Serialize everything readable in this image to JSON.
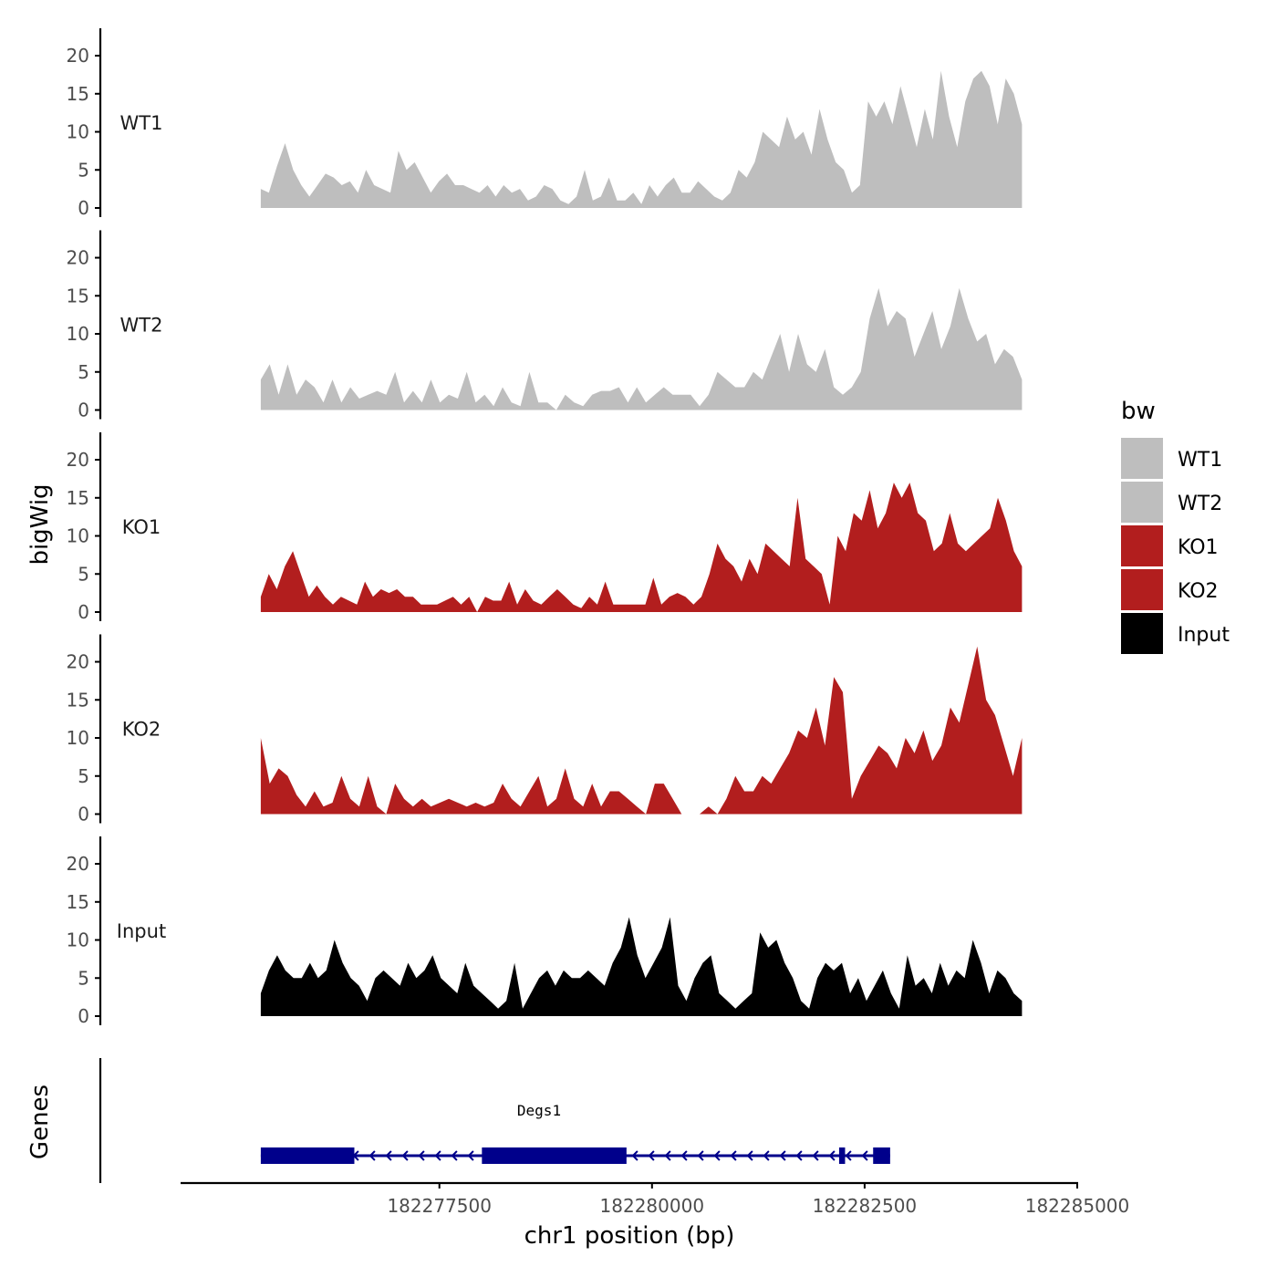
{
  "colors": {
    "wt": "#bebebe",
    "ko": "#b21e1e",
    "input": "#000000",
    "gene": "#00008b",
    "axis": "#000000",
    "tick_text": "#4d4d4d"
  },
  "chart_data": {
    "type": "area",
    "ylabel": "bigWig",
    "xlabel": "chr1 position (bp)",
    "genes_label": "Genes",
    "y_ticks": [
      "0",
      "5",
      "10",
      "15",
      "20"
    ],
    "ylim": [
      0,
      23
    ],
    "xlim": [
      182274500,
      182285000
    ],
    "x_ticks": [
      {
        "value": 182277500,
        "label": "182277500"
      },
      {
        "value": 182280000,
        "label": "182280000"
      },
      {
        "value": 182282500,
        "label": "182282500"
      },
      {
        "value": 182285000,
        "label": "182285000"
      }
    ],
    "x_range_signal": [
      182275400,
      182284350
    ],
    "legend": {
      "title": "bw",
      "entries": [
        {
          "label": "WT1",
          "color": "#bebebe"
        },
        {
          "label": "WT2",
          "color": "#bebebe"
        },
        {
          "label": "KO1",
          "color": "#b21e1e"
        },
        {
          "label": "KO2",
          "color": "#b21e1e"
        },
        {
          "label": "Input",
          "color": "#000000"
        }
      ]
    },
    "tracks": [
      {
        "name": "WT1",
        "color": "#bebebe",
        "values": [
          2.5,
          2,
          5.5,
          8.5,
          5,
          3,
          1.5,
          3,
          4.5,
          4,
          3,
          3.5,
          2,
          5,
          3,
          2.5,
          2,
          7.5,
          5,
          6,
          4,
          2,
          3.5,
          4.5,
          3,
          3,
          2.5,
          2,
          3,
          1.5,
          3,
          2,
          2.5,
          1,
          1.5,
          3,
          2.5,
          1,
          0.5,
          1.5,
          5,
          1,
          1.5,
          4,
          1,
          1,
          2,
          0.5,
          3,
          1.5,
          3,
          4,
          2,
          2,
          3.5,
          2.5,
          1.5,
          1,
          2,
          5,
          4,
          6,
          10,
          9,
          8,
          12,
          9,
          10,
          7,
          13,
          9,
          6,
          5,
          2,
          3,
          14,
          12,
          14,
          11,
          16,
          12,
          8,
          13,
          9,
          18,
          12,
          8,
          14,
          17,
          18,
          16,
          11,
          17,
          15,
          11
        ]
      },
      {
        "name": "WT2",
        "color": "#bebebe",
        "values": [
          4,
          6,
          2,
          6,
          2,
          4,
          3,
          1,
          4,
          1,
          3,
          1.5,
          2,
          2.5,
          2,
          5,
          1,
          2.5,
          1,
          4,
          1,
          2,
          1.5,
          5,
          1,
          2,
          0.5,
          3,
          1,
          0.5,
          5,
          1,
          1,
          0,
          2,
          1,
          0.5,
          2,
          2.5,
          2.5,
          3,
          1,
          3,
          1,
          2,
          3,
          2,
          2,
          2,
          0.5,
          2,
          5,
          4,
          3,
          3,
          5,
          4,
          7,
          10,
          5,
          10,
          6,
          5,
          8,
          3,
          2,
          3,
          5,
          12,
          16,
          11,
          13,
          12,
          7,
          10,
          13,
          8,
          11,
          16,
          12,
          9,
          10,
          6,
          8,
          7,
          4
        ]
      },
      {
        "name": "KO1",
        "color": "#b21e1e",
        "values": [
          2,
          5,
          3,
          6,
          8,
          5,
          2,
          3.5,
          2,
          1,
          2,
          1.5,
          1,
          4,
          2,
          3,
          2.5,
          3,
          2,
          2,
          1,
          1,
          1,
          1.5,
          2,
          1,
          2,
          0,
          2,
          1.5,
          1.5,
          4,
          1,
          3,
          1.5,
          1,
          2,
          3,
          2,
          1,
          0.5,
          2,
          1,
          4,
          1,
          1,
          1,
          1,
          1,
          4.5,
          1,
          2,
          2.5,
          2,
          1,
          2,
          5,
          9,
          7,
          6,
          4,
          7,
          5,
          9,
          8,
          7,
          6,
          15,
          7,
          6,
          5,
          1,
          10,
          8,
          13,
          12,
          16,
          11,
          13,
          17,
          15,
          17,
          13,
          12,
          8,
          9,
          13,
          9,
          8,
          9,
          10,
          11,
          15,
          12,
          8,
          6
        ]
      },
      {
        "name": "KO2",
        "color": "#b21e1e",
        "values": [
          10,
          4,
          6,
          5,
          2.5,
          1,
          3,
          1,
          1.5,
          5,
          2,
          1,
          5,
          1,
          0,
          4,
          2,
          1,
          2,
          1,
          1.5,
          2,
          1.5,
          1,
          1.5,
          1,
          1.5,
          4,
          2,
          1,
          3,
          5,
          1,
          2,
          6,
          2,
          1,
          4,
          1,
          3,
          3,
          2,
          1,
          0,
          4,
          4,
          2,
          0,
          0,
          0,
          1,
          0,
          2,
          5,
          3,
          3,
          5,
          4,
          6,
          8,
          11,
          10,
          14,
          9,
          18,
          16,
          2,
          5,
          7,
          9,
          8,
          6,
          10,
          8,
          11,
          7,
          9,
          14,
          12,
          17,
          22,
          15,
          13,
          9,
          5,
          10
        ]
      },
      {
        "name": "Input",
        "color": "#000000",
        "values": [
          3,
          6,
          8,
          6,
          5,
          5,
          7,
          5,
          6,
          10,
          7,
          5,
          4,
          2,
          5,
          6,
          5,
          4,
          7,
          5,
          6,
          8,
          5,
          4,
          3,
          7,
          4,
          3,
          2,
          1,
          2,
          7,
          1,
          3,
          5,
          6,
          4,
          6,
          5,
          5,
          6,
          5,
          4,
          7,
          9,
          13,
          8,
          5,
          7,
          9,
          13,
          4,
          2,
          5,
          7,
          8,
          3,
          2,
          1,
          2,
          3,
          11,
          9,
          10,
          7,
          5,
          2,
          1,
          5,
          7,
          6,
          7,
          3,
          5,
          2,
          4,
          6,
          3,
          1,
          8,
          4,
          5,
          3,
          7,
          4,
          6,
          5,
          10,
          7,
          3,
          6,
          5,
          3,
          2
        ]
      }
    ],
    "gene": {
      "name": "Degs1",
      "strand": "-",
      "start": 182275400,
      "end": 182282800,
      "exons": [
        {
          "start": 182275400,
          "end": 182276500
        },
        {
          "start": 182278000,
          "end": 182279700
        },
        {
          "start": 182282200,
          "end": 182282270
        },
        {
          "start": 182282600,
          "end": 182282800
        }
      ]
    }
  }
}
